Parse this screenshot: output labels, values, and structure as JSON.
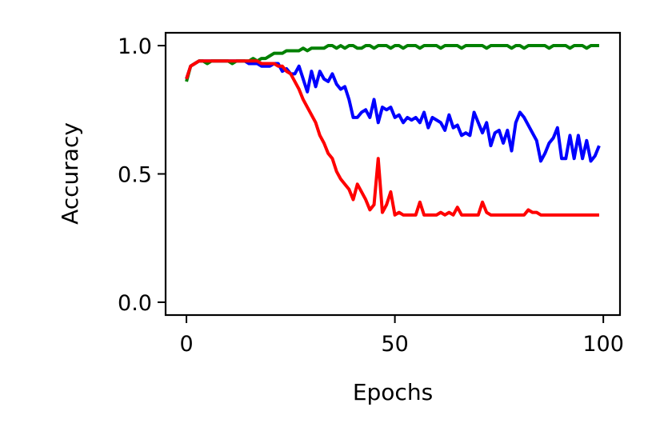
{
  "chart_data": {
    "type": "line",
    "title": "",
    "xlabel": "Epochs",
    "ylabel": "Accuracy",
    "xlim": [
      -5,
      104
    ],
    "ylim": [
      -0.05,
      1.05
    ],
    "xticks": [
      0,
      50,
      100
    ],
    "xtick_labels": [
      "0",
      "50",
      "100"
    ],
    "yticks": [
      0.0,
      0.5,
      1.0
    ],
    "ytick_labels": [
      "0.0",
      "0.5",
      "1.0"
    ],
    "grid": false,
    "legend": null,
    "series": [
      {
        "color": "#0000ff",
        "x": [
          0,
          1,
          2,
          3,
          4,
          5,
          6,
          7,
          8,
          9,
          10,
          11,
          12,
          13,
          14,
          15,
          16,
          17,
          18,
          19,
          20,
          21,
          22,
          23,
          24,
          25,
          26,
          27,
          28,
          29,
          30,
          31,
          32,
          33,
          34,
          35,
          36,
          37,
          38,
          39,
          40,
          41,
          42,
          43,
          44,
          45,
          46,
          47,
          48,
          49,
          50,
          51,
          52,
          53,
          54,
          55,
          56,
          57,
          58,
          59,
          60,
          61,
          62,
          63,
          64,
          65,
          66,
          67,
          68,
          69,
          70,
          71,
          72,
          73,
          74,
          75,
          76,
          77,
          78,
          79,
          80,
          81,
          82,
          83,
          84,
          85,
          86,
          87,
          88,
          89,
          90,
          91,
          92,
          93,
          94,
          95,
          96,
          97,
          98,
          99
        ],
        "y": [
          0.87,
          0.92,
          0.93,
          0.94,
          0.94,
          0.94,
          0.94,
          0.94,
          0.94,
          0.94,
          0.94,
          0.94,
          0.94,
          0.94,
          0.94,
          0.93,
          0.93,
          0.93,
          0.92,
          0.92,
          0.92,
          0.93,
          0.93,
          0.9,
          0.91,
          0.89,
          0.89,
          0.92,
          0.87,
          0.82,
          0.9,
          0.84,
          0.9,
          0.87,
          0.86,
          0.89,
          0.85,
          0.83,
          0.84,
          0.79,
          0.72,
          0.72,
          0.74,
          0.75,
          0.72,
          0.79,
          0.7,
          0.76,
          0.75,
          0.76,
          0.72,
          0.73,
          0.7,
          0.72,
          0.71,
          0.72,
          0.7,
          0.74,
          0.68,
          0.72,
          0.71,
          0.7,
          0.67,
          0.73,
          0.68,
          0.69,
          0.65,
          0.66,
          0.65,
          0.74,
          0.7,
          0.66,
          0.7,
          0.61,
          0.66,
          0.67,
          0.62,
          0.67,
          0.59,
          0.7,
          0.74,
          0.72,
          0.69,
          0.66,
          0.63,
          0.55,
          0.58,
          0.62,
          0.64,
          0.68,
          0.56,
          0.56,
          0.65,
          0.56,
          0.65,
          0.56,
          0.63,
          0.55,
          0.57,
          0.61
        ]
      },
      {
        "color": "#008000",
        "x": [
          0,
          1,
          2,
          3,
          4,
          5,
          6,
          7,
          8,
          9,
          10,
          11,
          12,
          13,
          14,
          15,
          16,
          17,
          18,
          19,
          20,
          21,
          22,
          23,
          24,
          25,
          26,
          27,
          28,
          29,
          30,
          31,
          32,
          33,
          34,
          35,
          36,
          37,
          38,
          39,
          40,
          41,
          42,
          43,
          44,
          45,
          46,
          47,
          48,
          49,
          50,
          51,
          52,
          53,
          54,
          55,
          56,
          57,
          58,
          59,
          60,
          61,
          62,
          63,
          64,
          65,
          66,
          67,
          68,
          69,
          70,
          71,
          72,
          73,
          74,
          75,
          76,
          77,
          78,
          79,
          80,
          81,
          82,
          83,
          84,
          85,
          86,
          87,
          88,
          89,
          90,
          91,
          92,
          93,
          94,
          95,
          96,
          97,
          98,
          99
        ],
        "y": [
          0.86,
          0.92,
          0.93,
          0.94,
          0.94,
          0.93,
          0.94,
          0.94,
          0.94,
          0.94,
          0.94,
          0.93,
          0.94,
          0.94,
          0.94,
          0.94,
          0.95,
          0.94,
          0.95,
          0.95,
          0.96,
          0.97,
          0.97,
          0.97,
          0.98,
          0.98,
          0.98,
          0.98,
          0.99,
          0.98,
          0.99,
          0.99,
          0.99,
          0.99,
          1.0,
          1.0,
          0.99,
          1.0,
          0.99,
          1.0,
          1.0,
          0.99,
          0.99,
          1.0,
          1.0,
          0.99,
          1.0,
          1.0,
          1.0,
          0.99,
          1.0,
          1.0,
          0.99,
          1.0,
          1.0,
          1.0,
          0.99,
          1.0,
          1.0,
          1.0,
          1.0,
          0.99,
          1.0,
          1.0,
          1.0,
          1.0,
          0.99,
          1.0,
          1.0,
          1.0,
          1.0,
          1.0,
          0.99,
          1.0,
          1.0,
          1.0,
          1.0,
          1.0,
          0.99,
          1.0,
          1.0,
          0.99,
          1.0,
          1.0,
          1.0,
          1.0,
          1.0,
          0.99,
          1.0,
          1.0,
          1.0,
          1.0,
          0.99,
          1.0,
          1.0,
          1.0,
          0.99,
          1.0,
          1.0,
          1.0
        ]
      },
      {
        "color": "#ff0000",
        "x": [
          0,
          1,
          2,
          3,
          4,
          5,
          6,
          7,
          8,
          9,
          10,
          11,
          12,
          13,
          14,
          15,
          16,
          17,
          18,
          19,
          20,
          21,
          22,
          23,
          24,
          25,
          26,
          27,
          28,
          29,
          30,
          31,
          32,
          33,
          34,
          35,
          36,
          37,
          38,
          39,
          40,
          41,
          42,
          43,
          44,
          45,
          46,
          47,
          48,
          49,
          50,
          51,
          52,
          53,
          54,
          55,
          56,
          57,
          58,
          59,
          60,
          61,
          62,
          63,
          64,
          65,
          66,
          67,
          68,
          69,
          70,
          71,
          72,
          73,
          74,
          75,
          76,
          77,
          78,
          79,
          80,
          81,
          82,
          83,
          84,
          85,
          86,
          87,
          88,
          89,
          90,
          91,
          92,
          93,
          94,
          95,
          96,
          97,
          98,
          99
        ],
        "y": [
          0.87,
          0.92,
          0.93,
          0.94,
          0.94,
          0.94,
          0.94,
          0.94,
          0.94,
          0.94,
          0.94,
          0.94,
          0.94,
          0.94,
          0.94,
          0.94,
          0.94,
          0.94,
          0.93,
          0.93,
          0.93,
          0.93,
          0.92,
          0.92,
          0.9,
          0.89,
          0.86,
          0.83,
          0.79,
          0.76,
          0.73,
          0.7,
          0.65,
          0.62,
          0.58,
          0.56,
          0.51,
          0.48,
          0.46,
          0.44,
          0.4,
          0.46,
          0.43,
          0.4,
          0.36,
          0.38,
          0.56,
          0.35,
          0.38,
          0.43,
          0.34,
          0.35,
          0.34,
          0.34,
          0.34,
          0.34,
          0.39,
          0.34,
          0.34,
          0.34,
          0.34,
          0.35,
          0.34,
          0.35,
          0.34,
          0.37,
          0.34,
          0.34,
          0.34,
          0.34,
          0.34,
          0.39,
          0.35,
          0.34,
          0.34,
          0.34,
          0.34,
          0.34,
          0.34,
          0.34,
          0.34,
          0.34,
          0.36,
          0.35,
          0.35,
          0.34,
          0.34,
          0.34,
          0.34,
          0.34,
          0.34,
          0.34,
          0.34,
          0.34,
          0.34,
          0.34,
          0.34,
          0.34,
          0.34,
          0.34
        ]
      }
    ]
  }
}
